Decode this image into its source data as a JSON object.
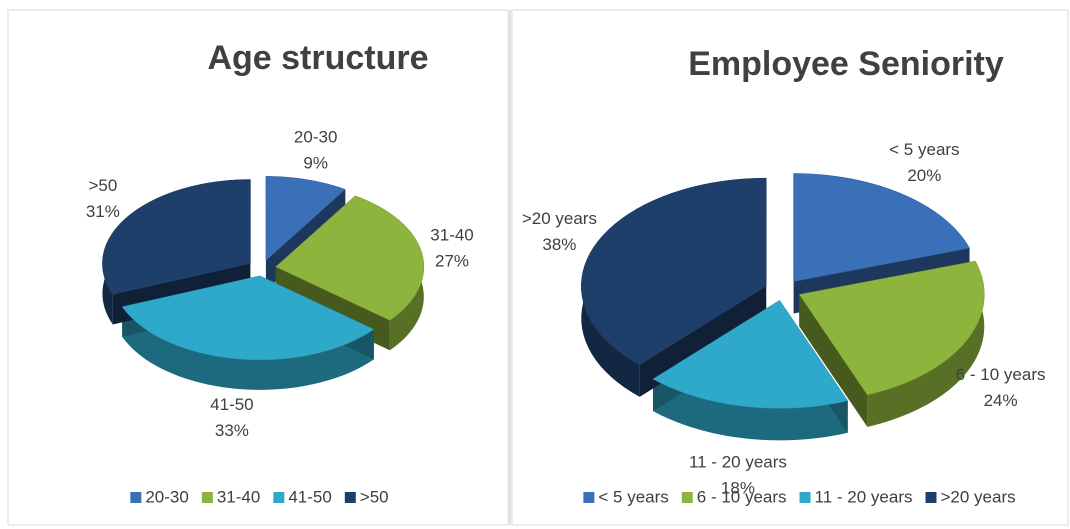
{
  "chart_data": [
    {
      "type": "pie3d",
      "title": "Age structure",
      "categories": [
        "20-30",
        "31-40",
        "41-50",
        ">50"
      ],
      "values": [
        9,
        27,
        33,
        31
      ],
      "value_labels": [
        "9%",
        "27%",
        "33%",
        "31%"
      ],
      "colors": [
        "#3a70b8",
        "#8db43c",
        "#2fa9ca",
        "#1f3f6b"
      ],
      "legend": "bottom"
    },
    {
      "type": "pie3d",
      "title": "Employee Seniority",
      "categories": [
        "< 5 years",
        "6 - 10 years",
        "11 - 20 years",
        ">20 years"
      ],
      "values": [
        20,
        24,
        18,
        38
      ],
      "value_labels": [
        "20%",
        "24%",
        "18%",
        "38%"
      ],
      "colors": [
        "#3a70b8",
        "#8db43c",
        "#2fa9ca",
        "#1f3f6b"
      ],
      "legend": "bottom"
    }
  ]
}
